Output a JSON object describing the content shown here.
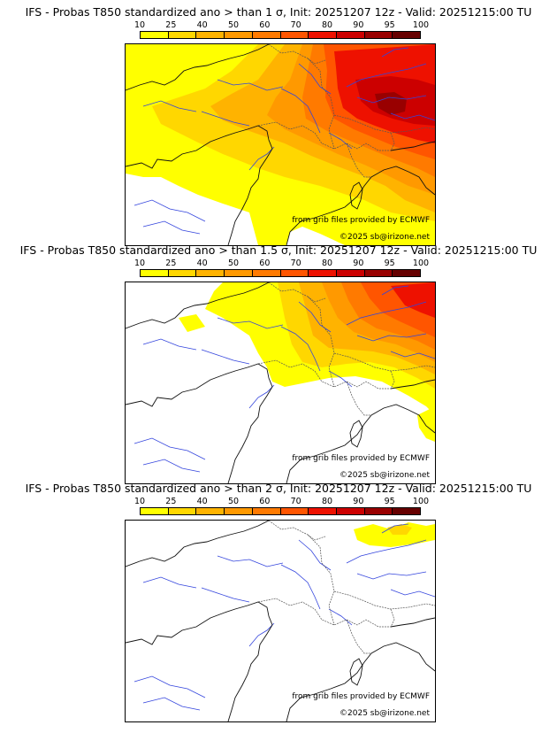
{
  "panels": [
    {
      "title": "IFS - Probas T850  standardized ano > than 1 σ, Init: 20251207 12z - Valid: 20251215:00 TU",
      "threshold_sigma": 1,
      "coverage": "high"
    },
    {
      "title": "IFS - Probas T850  standardized ano > than 1.5 σ, Init: 20251207 12z - Valid: 20251215:00 TU",
      "threshold_sigma": 1.5,
      "coverage": "medium"
    },
    {
      "title": "IFS - Probas T850  standardized ano > than 2 σ, Init: 20251207 12z - Valid: 20251215:00 TU",
      "threshold_sigma": 2,
      "coverage": "low"
    }
  ],
  "colorbar": {
    "labels": [
      "10",
      "25",
      "40",
      "50",
      "60",
      "70",
      "80",
      "90",
      "95",
      "100"
    ],
    "colors": [
      "#ffff00",
      "#ffd700",
      "#ffb300",
      "#ff9900",
      "#ff7a00",
      "#ff5500",
      "#ee1100",
      "#cc0000",
      "#990000",
      "#660000"
    ]
  },
  "credits": {
    "source": "from grib files provided by ECMWF",
    "copyright": "©2025 sb@irizone.net"
  }
}
